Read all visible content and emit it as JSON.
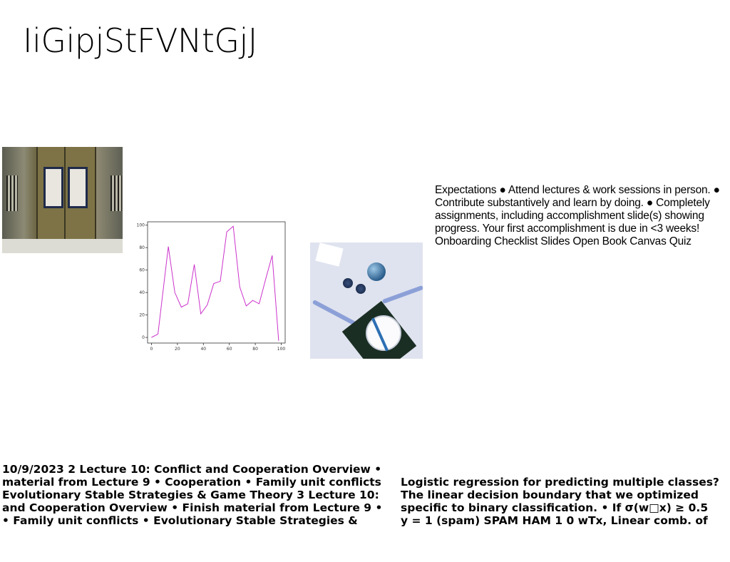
{
  "title": "IiGipjStFVNtGjJ",
  "images": {
    "door": "photo of a double wooden door with two calligraphy plaques",
    "table": "photo of a table setting with a plate, dark napkin, blue ornaments and ribbon"
  },
  "expectations_lines": [
    "Expectations ● Attend lectures & work sessions in person. ●",
    "Contribute substantively and learn by doing. ● Completely",
    "assignments, including accomplishment slide(s) showing",
    "progress. Your first accomplishment is due in <3 weeks!",
    "Onboarding Checklist Slides Open Book Canvas Quiz"
  ],
  "lecture_lines": [
    "10/9/2023 2 Lecture 10: Conflict and Cooperation Overview •",
    "material from Lecture 9 • Cooperation • Family unit conflicts",
    "Evolutionary Stable Strategies & Game Theory 3 Lecture 10:",
    "and Cooperation Overview • Finish material from Lecture 9 •",
    "• Family unit conflicts • Evolutionary Stable Strategies &"
  ],
  "logistic_lines": [
    "Logistic regression for predicting multiple classes?",
    "The linear decision boundary that we optimized",
    "specific to binary classification. • If σ(w□x) ≥ 0.5",
    "y = 1 (spam) SPAM HAM 1 0 wTx, Linear comb. of"
  ],
  "chart_data": {
    "type": "line",
    "title": "",
    "xlabel": "",
    "ylabel": "",
    "xlim": [
      -3,
      103
    ],
    "ylim": [
      -5,
      103
    ],
    "xticks": [
      0,
      20,
      40,
      60,
      80,
      100
    ],
    "yticks": [
      0,
      20,
      40,
      60,
      80,
      100
    ],
    "grid": false,
    "color": "#cc33cc",
    "series": [
      {
        "x": [
          0,
          5,
          13,
          18,
          23,
          28,
          33,
          38,
          43,
          48,
          53,
          58,
          63,
          68,
          73,
          78,
          83,
          88,
          93,
          98
        ],
        "y": [
          0,
          3,
          81,
          40,
          27,
          30,
          65,
          21,
          29,
          48,
          50,
          94,
          99,
          45,
          28,
          33,
          30,
          52,
          73,
          -3
        ]
      }
    ]
  }
}
